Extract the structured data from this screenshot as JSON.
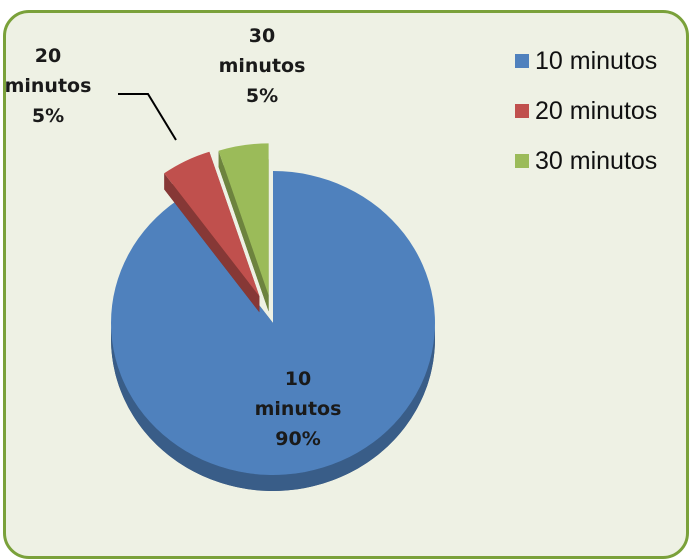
{
  "chart_data": {
    "type": "pie",
    "title": "",
    "categories": [
      "10 minutos",
      "20 minutos",
      "30 minutos"
    ],
    "values": [
      90,
      5,
      5
    ],
    "unit": "%",
    "colors": [
      "#4f81bd",
      "#c0504d",
      "#9bbb59"
    ],
    "exploded": true,
    "style": "3d",
    "legend_position": "right",
    "data_labels": [
      {
        "lines": [
          "10",
          "minutos",
          "90%"
        ]
      },
      {
        "lines": [
          "20",
          "minutos",
          "5%"
        ]
      },
      {
        "lines": [
          "30",
          "minutos",
          "5%"
        ]
      }
    ]
  }
}
